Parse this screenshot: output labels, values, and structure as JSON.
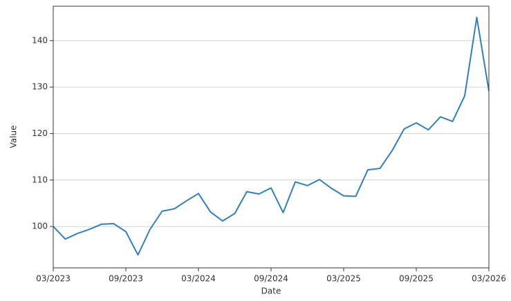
{
  "chart_data": {
    "type": "line",
    "xlabel": "Date",
    "ylabel": "Value",
    "x": [
      "03/2023",
      "04/2023",
      "05/2023",
      "06/2023",
      "07/2023",
      "08/2023",
      "09/2023",
      "10/2023",
      "11/2023",
      "12/2023",
      "01/2024",
      "02/2024",
      "03/2024",
      "04/2024",
      "05/2024",
      "06/2024",
      "07/2024",
      "08/2024",
      "09/2024",
      "10/2024",
      "11/2024",
      "12/2024",
      "01/2025",
      "02/2025",
      "03/2025",
      "04/2025",
      "05/2025",
      "06/2025",
      "07/2025",
      "08/2025",
      "09/2025",
      "10/2025",
      "11/2025",
      "12/2025",
      "01/2026",
      "02/2026",
      "03/2026"
    ],
    "series": [
      {
        "name": "Value",
        "color": "#2f7fbd",
        "values": [
          100.0,
          97.3,
          98.5,
          99.4,
          100.5,
          100.6,
          98.9,
          93.9,
          99.4,
          103.3,
          103.8,
          105.5,
          107.1,
          103.1,
          101.2,
          102.8,
          107.5,
          107.0,
          108.3,
          103.0,
          109.6,
          108.8,
          110.1,
          108.2,
          106.6,
          106.5,
          112.2,
          112.5,
          116.3,
          121.0,
          122.3,
          120.8,
          123.6,
          122.6,
          128.1,
          145.0,
          129.2
        ]
      }
    ],
    "xticks": [
      "03/2023",
      "09/2023",
      "03/2024",
      "09/2024",
      "03/2025",
      "09/2025",
      "03/2026"
    ],
    "ylim": [
      91.1,
      147.4
    ],
    "yticks": [
      100,
      110,
      120,
      130,
      140
    ],
    "grid": true
  }
}
